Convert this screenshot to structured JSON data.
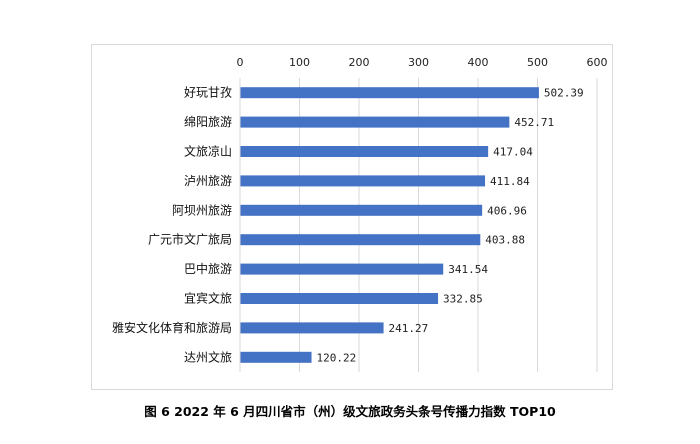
{
  "caption": "图 6  2022 年 6 月四川省市（州）级文旅政务头条号传播力指数 TOP10",
  "chart_data": {
    "type": "bar",
    "orientation": "horizontal",
    "categories": [
      "好玩甘孜",
      "绵阳旅游",
      "文旅凉山",
      "泸州旅游",
      "阿坝州旅游",
      "广元市文广旅局",
      "巴中旅游",
      "宜宾文旅",
      "雅安文化体育和旅游局",
      "达州文旅"
    ],
    "values": [
      502.39,
      452.71,
      417.04,
      411.84,
      406.96,
      403.88,
      341.54,
      332.85,
      241.27,
      120.22
    ],
    "value_labels": [
      "502.39",
      "452.71",
      "417.04",
      "411.84",
      "406.96",
      "403.88",
      "341.54",
      "332.85",
      "241.27",
      "120.22"
    ],
    "xlim": [
      0,
      600
    ],
    "x_ticks": [
      "0",
      "100",
      "200",
      "300",
      "400",
      "500",
      "600"
    ],
    "x_axis_position": "top",
    "grid": true,
    "bar_color": "#4472c4",
    "grid_color": "#d9d9d9",
    "title": "",
    "xlabel": "",
    "ylabel": ""
  }
}
